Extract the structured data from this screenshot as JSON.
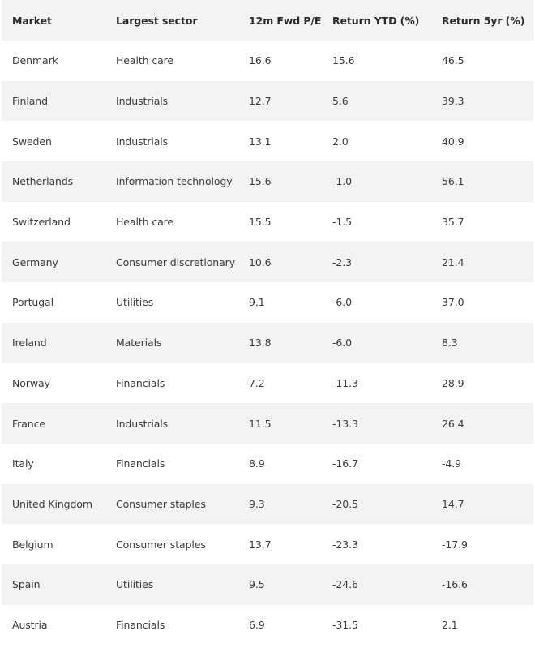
{
  "table": {
    "headers": [
      "Market",
      "Largest sector",
      "12m Fwd P/E",
      "Return YTD (%)",
      "Return 5yr (%)"
    ],
    "rows": [
      [
        "Denmark",
        "Health care",
        "16.6",
        "15.6",
        "46.5"
      ],
      [
        "Finland",
        "Industrials",
        "12.7",
        "5.6",
        "39.3"
      ],
      [
        "Sweden",
        "Industrials",
        "13.1",
        "2.0",
        "40.9"
      ],
      [
        "Netherlands",
        "Information technology",
        "15.6",
        "-1.0",
        "56.1"
      ],
      [
        "Switzerland",
        "Health care",
        "15.5",
        "-1.5",
        "35.7"
      ],
      [
        "Germany",
        "Consumer discretionary",
        "10.6",
        "-2.3",
        "21.4"
      ],
      [
        "Portugal",
        "Utilities",
        "9.1",
        "-6.0",
        "37.0"
      ],
      [
        "Ireland",
        "Materials",
        "13.8",
        "-6.0",
        "8.3"
      ],
      [
        "Norway",
        "Financials",
        "7.2",
        "-11.3",
        "28.9"
      ],
      [
        "France",
        "Industrials",
        "11.5",
        "-13.3",
        "26.4"
      ],
      [
        "Italy",
        "Financials",
        "8.9",
        "-16.7",
        "-4.9"
      ],
      [
        "United Kingdom",
        "Consumer staples",
        "9.3",
        "-20.5",
        "14.7"
      ],
      [
        "Belgium",
        "Consumer staples",
        "13.7",
        "-23.3",
        "-17.9"
      ],
      [
        "Spain",
        "Utilities",
        "9.5",
        "-24.6",
        "-16.6"
      ],
      [
        "Austria",
        "Financials",
        "6.9",
        "-31.5",
        "2.1"
      ]
    ]
  },
  "colors": {
    "header_bg": "#f3f3f3",
    "stripe_bg": "#f3f3f3",
    "text": "#3a3a3a"
  }
}
